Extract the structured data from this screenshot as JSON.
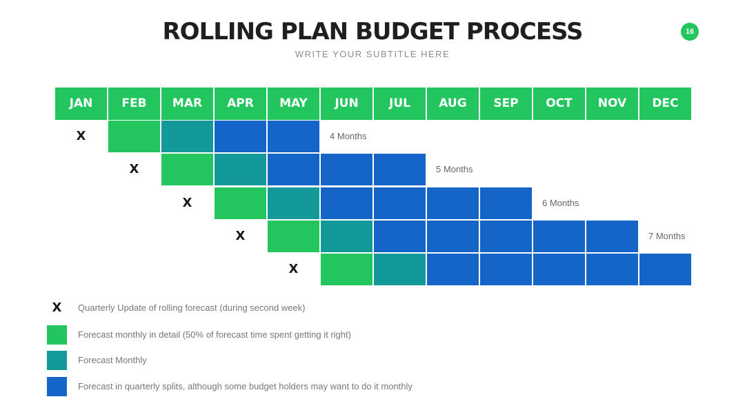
{
  "title": "ROLLING PLAN BUDGET PROCESS",
  "subtitle": "WRITE YOUR SUBTITLE HERE",
  "page_number": "16",
  "colors": {
    "green": "#22c55e",
    "teal": "#14999b",
    "blue": "#1565c8"
  },
  "months": [
    "JAN",
    "FEB",
    "MAR",
    "APR",
    "MAY",
    "JUN",
    "JUL",
    "AUG",
    "SEP",
    "OCT",
    "NOV",
    "DEC"
  ],
  "rows": [
    {
      "x_month": "JAN",
      "cells": [
        "green",
        "teal",
        "blue",
        "blue"
      ],
      "label": "4 Months"
    },
    {
      "x_month": "FEB",
      "cells": [
        "green",
        "teal",
        "blue",
        "blue",
        "blue"
      ],
      "label": "5 Months"
    },
    {
      "x_month": "MAR",
      "cells": [
        "green",
        "teal",
        "blue",
        "blue",
        "blue",
        "blue"
      ],
      "label": "6 Months"
    },
    {
      "x_month": "APR",
      "cells": [
        "green",
        "teal",
        "blue",
        "blue",
        "blue",
        "blue",
        "blue"
      ],
      "label": "7 Months"
    },
    {
      "x_month": "MAY",
      "cells": [
        "green",
        "teal",
        "blue",
        "blue",
        "blue",
        "blue",
        "blue"
      ],
      "label": ""
    }
  ],
  "x_symbol": "X",
  "legend": [
    {
      "symbol": "X",
      "color": "",
      "text": "Quarterly Update of rolling forecast (during second week)"
    },
    {
      "symbol": "",
      "color": "green",
      "text": "Forecast monthly in detail (50% of forecast time spent getting it right)"
    },
    {
      "symbol": "",
      "color": "teal",
      "text": "Forecast Monthly"
    },
    {
      "symbol": "",
      "color": "blue",
      "text": "Forecast in quarterly splits, although some budget holders may want to do it monthly"
    }
  ]
}
